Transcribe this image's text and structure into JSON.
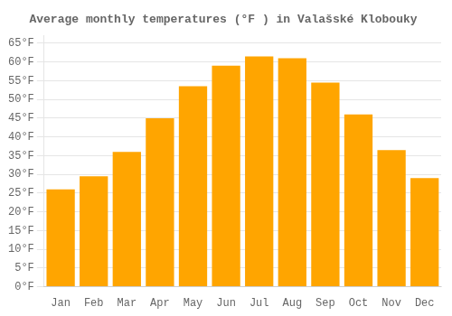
{
  "chart_data": {
    "type": "bar",
    "title": "Average monthly temperatures (°F ) in Valašské Klobouky",
    "categories": [
      "Jan",
      "Feb",
      "Mar",
      "Apr",
      "May",
      "Jun",
      "Jul",
      "Aug",
      "Sep",
      "Oct",
      "Nov",
      "Dec"
    ],
    "values": [
      26,
      29.5,
      36,
      45,
      53.5,
      59,
      61.5,
      61,
      54.5,
      46,
      36.5,
      29
    ],
    "color": "#FFA500",
    "ylim": [
      0,
      67
    ],
    "yticks": [
      {
        "value": 0,
        "label": "0°F"
      },
      {
        "value": 5,
        "label": "5°F"
      },
      {
        "value": 10,
        "label": "10°F"
      },
      {
        "value": 15,
        "label": "15°F"
      },
      {
        "value": 20,
        "label": "20°F"
      },
      {
        "value": 25,
        "label": "25°F"
      },
      {
        "value": 30,
        "label": "30°F"
      },
      {
        "value": 35,
        "label": "35°F"
      },
      {
        "value": 40,
        "label": "40°F"
      },
      {
        "value": 45,
        "label": "45°F"
      },
      {
        "value": 50,
        "label": "50°F"
      },
      {
        "value": 55,
        "label": "55°F"
      },
      {
        "value": 60,
        "label": "60°F"
      },
      {
        "value": 65,
        "label": "65°F"
      }
    ],
    "grid": true
  }
}
